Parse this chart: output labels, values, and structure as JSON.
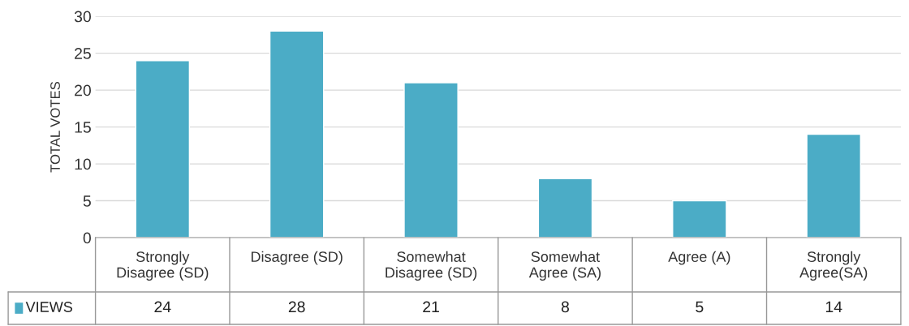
{
  "chart_data": {
    "type": "bar",
    "categories": [
      "Strongly\nDisagree (SD)",
      "Disagree (SD)",
      "Somewhat\nDisagree (SD)",
      "Somewhat\nAgree (SA)",
      "Agree (A)",
      "Strongly\nAgree(SA)"
    ],
    "series": [
      {
        "name": "VIEWS",
        "color": "#4bacc6",
        "values": [
          24,
          28,
          21,
          8,
          5,
          14
        ]
      }
    ],
    "ylabel": "TOTAL VOTES",
    "ylim": [
      0,
      30
    ],
    "yticks": [
      0,
      5,
      10,
      15,
      20,
      25,
      30
    ],
    "grid": "y",
    "legend": "bottom left",
    "data_labels": true
  }
}
